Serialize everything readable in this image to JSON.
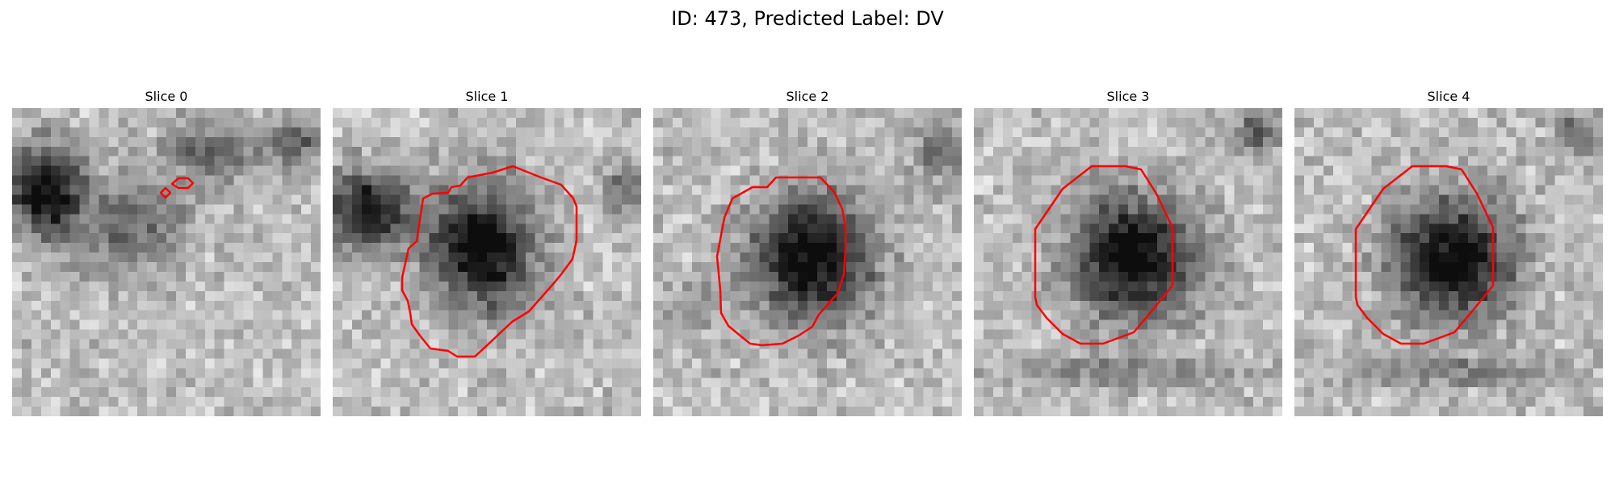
{
  "figure": {
    "title": "ID: 473, Predicted Label: DV",
    "contour_color": "#ff0000"
  },
  "panels": [
    {
      "title": "Slice 0"
    },
    {
      "title": "Slice 1"
    },
    {
      "title": "Slice 2"
    },
    {
      "title": "Slice 3"
    },
    {
      "title": "Slice 4"
    }
  ]
}
